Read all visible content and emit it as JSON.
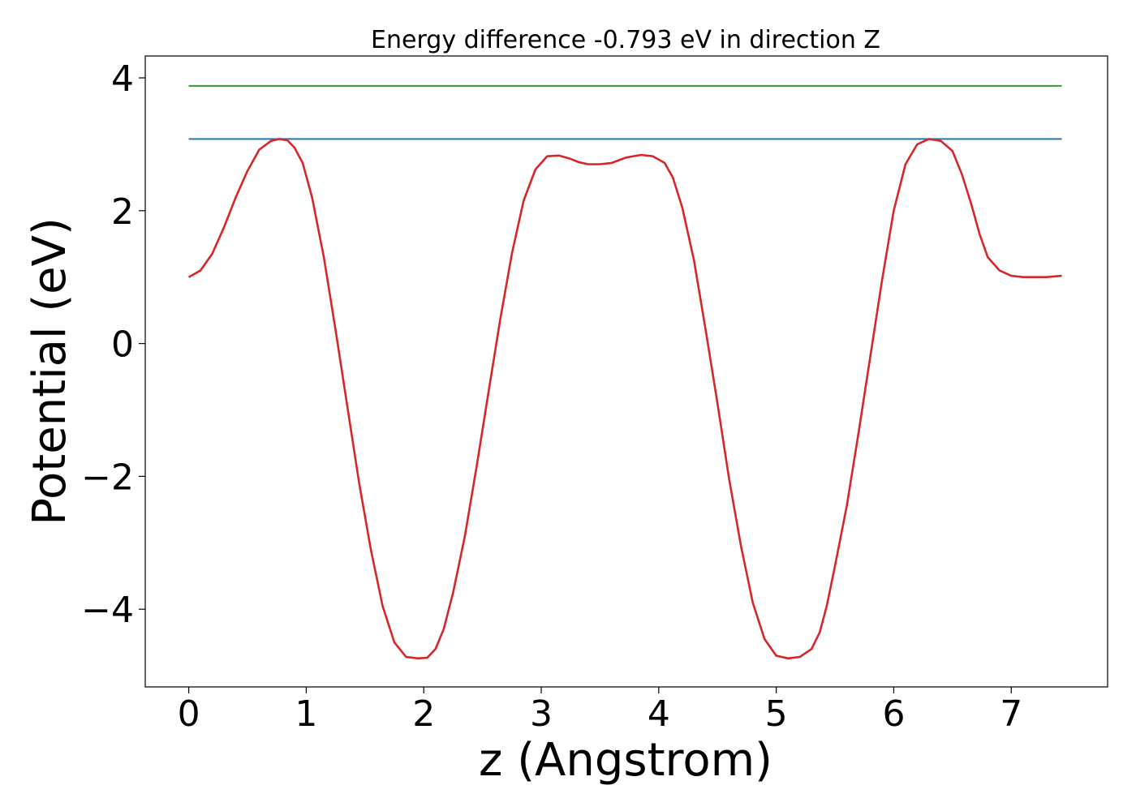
{
  "chart_data": {
    "type": "line",
    "title": "Energy difference -0.793 eV in direction Z",
    "xlabel": "z (Angstrom)",
    "ylabel": "Potential (eV)",
    "xlim": [
      -0.37,
      7.82
    ],
    "ylim": [
      -5.17,
      4.33
    ],
    "x_ticks": [
      0,
      1,
      2,
      3,
      4,
      5,
      6,
      7
    ],
    "x_tick_labels": [
      "0",
      "1",
      "2",
      "3",
      "4",
      "5",
      "6",
      "7"
    ],
    "y_ticks": [
      -4,
      -2,
      0,
      2,
      4
    ],
    "y_tick_labels": [
      "−4",
      "−2",
      "0",
      "2",
      "4"
    ],
    "grid": false,
    "series": [
      {
        "color": "#2ca02c",
        "x": [
          0,
          7.43
        ],
        "y": [
          3.88,
          3.88
        ]
      },
      {
        "color": "#1f77b4",
        "x": [
          0,
          7.43
        ],
        "y": [
          3.08,
          3.08
        ]
      },
      {
        "color": "#d62728",
        "x": [
          0,
          0.1,
          0.2,
          0.3,
          0.4,
          0.5,
          0.6,
          0.7,
          0.77,
          0.84,
          0.9,
          0.97,
          1.05,
          1.15,
          1.25,
          1.35,
          1.45,
          1.55,
          1.65,
          1.75,
          1.85,
          1.95,
          2.03,
          2.1,
          2.17,
          2.25,
          2.35,
          2.45,
          2.55,
          2.65,
          2.75,
          2.85,
          2.95,
          3.05,
          3.15,
          3.25,
          3.32,
          3.4,
          3.5,
          3.6,
          3.72,
          3.85,
          3.95,
          4.05,
          4.12,
          4.2,
          4.3,
          4.4,
          4.5,
          4.6,
          4.7,
          4.8,
          4.9,
          5.0,
          5.1,
          5.2,
          5.3,
          5.37,
          5.43,
          5.5,
          5.6,
          5.7,
          5.8,
          5.9,
          6.0,
          6.1,
          6.2,
          6.3,
          6.4,
          6.5,
          6.58,
          6.66,
          6.73,
          6.8,
          6.9,
          7.0,
          7.1,
          7.2,
          7.3,
          7.43
        ],
        "y": [
          1.0,
          1.1,
          1.35,
          1.75,
          2.2,
          2.6,
          2.92,
          3.05,
          3.08,
          3.06,
          2.95,
          2.72,
          2.2,
          1.3,
          0.2,
          -0.95,
          -2.1,
          -3.1,
          -3.95,
          -4.5,
          -4.72,
          -4.74,
          -4.73,
          -4.6,
          -4.3,
          -3.75,
          -2.9,
          -1.85,
          -0.75,
          0.35,
          1.35,
          2.15,
          2.62,
          2.82,
          2.83,
          2.78,
          2.73,
          2.7,
          2.7,
          2.72,
          2.8,
          2.84,
          2.82,
          2.72,
          2.5,
          2.05,
          1.25,
          0.2,
          -0.9,
          -2.05,
          -3.05,
          -3.9,
          -4.45,
          -4.7,
          -4.74,
          -4.72,
          -4.6,
          -4.35,
          -3.95,
          -3.35,
          -2.45,
          -1.35,
          -0.2,
          0.95,
          2.0,
          2.7,
          3.0,
          3.08,
          3.05,
          2.9,
          2.55,
          2.1,
          1.65,
          1.3,
          1.1,
          1.02,
          1.0,
          1.0,
          1.0,
          1.02
        ]
      }
    ]
  }
}
